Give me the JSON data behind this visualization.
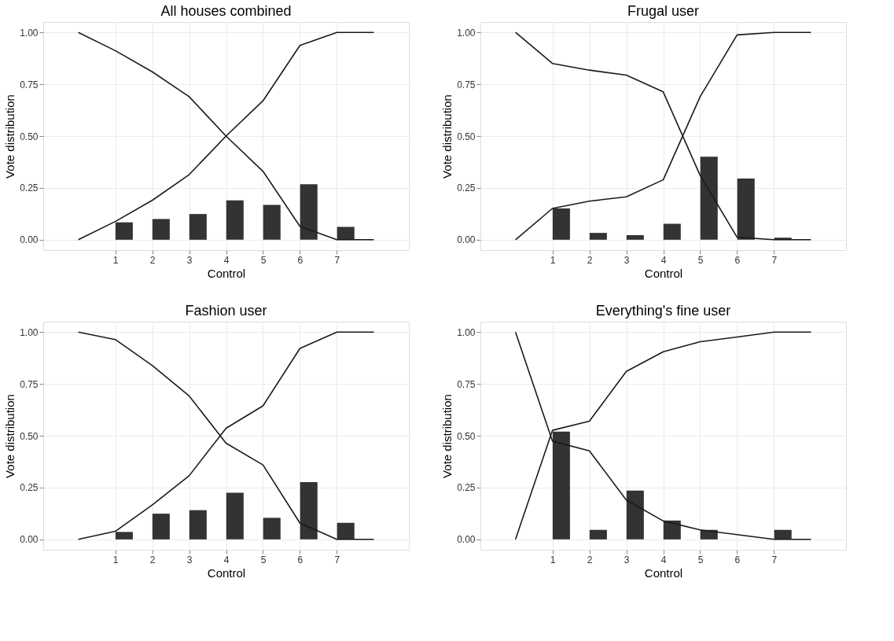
{
  "chart_data": [
    {
      "type": "bar",
      "title": "All houses combined",
      "xlabel": "Control",
      "ylabel": "Vote distribution",
      "xlim": [
        -0.95,
        8.95
      ],
      "ylim": [
        -0.05,
        1.05
      ],
      "xticks": [
        1,
        2,
        3,
        4,
        5,
        6,
        7
      ],
      "yticks": [
        {
          "value": 0,
          "label": "0.00"
        },
        {
          "value": 0.25,
          "label": "0.25"
        },
        {
          "value": 0.5,
          "label": "0.50"
        },
        {
          "value": 0.75,
          "label": "0.75"
        },
        {
          "value": 1,
          "label": "1.00"
        }
      ],
      "grid": true,
      "series": [
        {
          "color": "#333333",
          "x": [
            1.24,
            2.24,
            3.24,
            4.24,
            5.24,
            6.24,
            7.24
          ],
          "values": [
            0.084,
            0.1,
            0.124,
            0.19,
            0.168,
            0.268,
            0.062
          ]
        },
        {
          "type": "line",
          "color": "#1a1a1a",
          "x": [
            0,
            1,
            2,
            3,
            4,
            5,
            6,
            7,
            8
          ],
          "values": [
            0,
            0.088,
            0.19,
            0.314,
            0.5,
            0.67,
            0.937,
            1,
            1
          ]
        },
        {
          "type": "line",
          "color": "#1a1a1a",
          "x": [
            0,
            1,
            2,
            3,
            4,
            5,
            6,
            7,
            8
          ],
          "values": [
            1,
            0.912,
            0.81,
            0.69,
            0.5,
            0.33,
            0.065,
            0,
            0
          ]
        }
      ]
    },
    {
      "type": "bar",
      "title": "Frugal user",
      "xlabel": "Control",
      "ylabel": "Vote distribution",
      "xlim": [
        -0.95,
        8.95
      ],
      "ylim": [
        -0.05,
        1.05
      ],
      "xticks": [
        1,
        2,
        3,
        4,
        5,
        6,
        7
      ],
      "yticks": [
        {
          "value": 0,
          "label": "0.00"
        },
        {
          "value": 0.25,
          "label": "0.25"
        },
        {
          "value": 0.5,
          "label": "0.50"
        },
        {
          "value": 0.75,
          "label": "0.75"
        },
        {
          "value": 1,
          "label": "1.00"
        }
      ],
      "grid": true,
      "series": [
        {
          "color": "#333333",
          "x": [
            1.24,
            2.24,
            3.24,
            4.24,
            5.24,
            6.24,
            7.24
          ],
          "values": [
            0.151,
            0.033,
            0.022,
            0.077,
            0.4,
            0.295,
            0.01
          ]
        },
        {
          "type": "line",
          "color": "#1a1a1a",
          "x": [
            0,
            1,
            2,
            3,
            4,
            5,
            6,
            7,
            8
          ],
          "values": [
            0,
            0.151,
            0.186,
            0.207,
            0.289,
            0.69,
            0.988,
            1,
            1
          ]
        },
        {
          "type": "line",
          "color": "#1a1a1a",
          "x": [
            0,
            1,
            2,
            3,
            4,
            5,
            6,
            7,
            8
          ],
          "values": [
            1,
            0.85,
            0.818,
            0.794,
            0.713,
            0.31,
            0.012,
            0,
            0
          ]
        }
      ]
    },
    {
      "type": "bar",
      "title": "Fashion user",
      "xlabel": "Control",
      "ylabel": "Vote distribution",
      "xlim": [
        -0.95,
        8.95
      ],
      "ylim": [
        -0.05,
        1.05
      ],
      "xticks": [
        1,
        2,
        3,
        4,
        5,
        6,
        7
      ],
      "yticks": [
        {
          "value": 0,
          "label": "0.00"
        },
        {
          "value": 0.25,
          "label": "0.25"
        },
        {
          "value": 0.5,
          "label": "0.50"
        },
        {
          "value": 0.75,
          "label": "0.75"
        },
        {
          "value": 1,
          "label": "1.00"
        }
      ],
      "grid": true,
      "series": [
        {
          "color": "#333333",
          "x": [
            1.24,
            2.24,
            3.24,
            4.24,
            5.24,
            6.24,
            7.24
          ],
          "values": [
            0.036,
            0.124,
            0.141,
            0.225,
            0.104,
            0.276,
            0.08
          ]
        },
        {
          "type": "line",
          "color": "#1a1a1a",
          "x": [
            0,
            1,
            2,
            3,
            4,
            5,
            6,
            7,
            8
          ],
          "values": [
            0,
            0.039,
            0.166,
            0.307,
            0.536,
            0.644,
            0.921,
            1,
            1
          ]
        },
        {
          "type": "line",
          "color": "#1a1a1a",
          "x": [
            0,
            1,
            2,
            3,
            4,
            5,
            6,
            7,
            8
          ],
          "values": [
            1,
            0.964,
            0.839,
            0.692,
            0.464,
            0.359,
            0.079,
            0,
            0
          ]
        }
      ]
    },
    {
      "type": "bar",
      "title": "Everything's fine user",
      "xlabel": "Control",
      "ylabel": "Vote distribution",
      "xlim": [
        -0.95,
        8.95
      ],
      "ylim": [
        -0.05,
        1.05
      ],
      "xticks": [
        1,
        2,
        3,
        4,
        5,
        6,
        7
      ],
      "yticks": [
        {
          "value": 0,
          "label": "0.00"
        },
        {
          "value": 0.25,
          "label": "0.25"
        },
        {
          "value": 0.5,
          "label": "0.50"
        },
        {
          "value": 0.75,
          "label": "0.75"
        },
        {
          "value": 1,
          "label": "1.00"
        }
      ],
      "grid": true,
      "series": [
        {
          "color": "#333333",
          "x": [
            1.24,
            2.24,
            3.24,
            4.24,
            5.24,
            6.24,
            7.24
          ],
          "values": [
            0.52,
            0.046,
            0.235,
            0.091,
            0.046,
            null,
            0.046
          ]
        },
        {
          "type": "line",
          "color": "#1a1a1a",
          "x": [
            0,
            1,
            2,
            3,
            4,
            5,
            6,
            7,
            8
          ],
          "values": [
            0,
            0.526,
            0.57,
            0.81,
            0.905,
            0.953,
            0.976,
            1,
            1
          ]
        },
        {
          "type": "line",
          "color": "#1a1a1a",
          "x": [
            0,
            1,
            2,
            3,
            4,
            5,
            6,
            7,
            8
          ],
          "values": [
            1,
            0.474,
            0.427,
            0.19,
            0.089,
            0.046,
            0.023,
            0,
            0
          ]
        }
      ]
    }
  ]
}
